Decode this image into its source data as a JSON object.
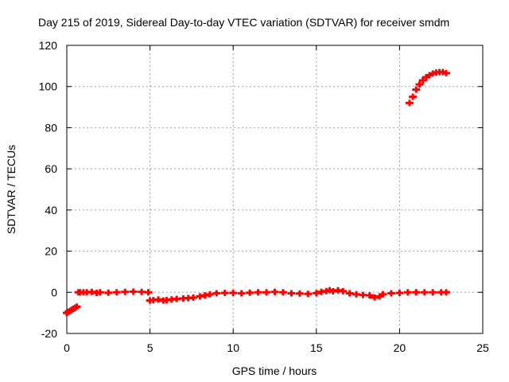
{
  "chart_data": {
    "type": "scatter",
    "title": "Day 215 of 2019, Sidereal Day-to-day VTEC variation (SDTVAR) for receiver smdm",
    "xlabel": "GPS time / hours",
    "ylabel": "SDTVAR / TECUs",
    "xlim": [
      0,
      25
    ],
    "ylim": [
      -20,
      120
    ],
    "xticks": [
      0,
      5,
      10,
      15,
      20,
      25
    ],
    "yticks": [
      -20,
      0,
      20,
      40,
      60,
      80,
      100,
      120
    ],
    "grid": true,
    "marker_color": "#ff0000",
    "series": [
      {
        "name": "SDTVAR",
        "x": [
          0.0,
          0.1,
          0.2,
          0.3,
          0.4,
          0.5,
          0.6,
          0.7,
          0.8,
          1.0,
          1.2,
          1.5,
          1.8,
          2.0,
          2.5,
          3.0,
          3.5,
          4.0,
          4.5,
          4.9,
          5.0,
          5.2,
          5.5,
          5.8,
          6.0,
          6.3,
          6.6,
          7.0,
          7.3,
          7.6,
          8.0,
          8.3,
          8.6,
          9.0,
          9.5,
          10.0,
          10.5,
          11.0,
          11.5,
          12.0,
          12.5,
          13.0,
          13.5,
          14.0,
          14.5,
          15.0,
          15.3,
          15.6,
          15.8,
          16.0,
          16.3,
          16.6,
          17.0,
          17.4,
          17.8,
          18.2,
          18.5,
          18.8,
          19.0,
          19.5,
          20.0,
          20.5,
          21.0,
          21.5,
          22.0,
          22.5,
          22.8,
          20.6,
          20.8,
          21.0,
          21.2,
          21.4,
          21.6,
          21.8,
          22.0,
          22.2,
          22.4,
          22.6,
          22.8
        ],
        "y": [
          -10.0,
          -9.5,
          -9.0,
          -8.5,
          -8.0,
          -7.5,
          -7.0,
          0.0,
          0.0,
          0.0,
          0.0,
          0.2,
          -0.3,
          0.0,
          -0.2,
          0.0,
          0.2,
          0.3,
          0.2,
          0.0,
          -4.0,
          -3.8,
          -3.5,
          -4.0,
          -3.8,
          -3.5,
          -3.2,
          -3.0,
          -2.8,
          -2.6,
          -2.0,
          -1.5,
          -1.0,
          -0.5,
          -0.3,
          -0.3,
          -0.5,
          -0.2,
          0.0,
          0.0,
          0.2,
          0.0,
          -0.5,
          -0.6,
          -0.8,
          -0.4,
          0.2,
          0.6,
          1.0,
          0.5,
          1.0,
          0.5,
          -0.5,
          -1.0,
          -1.3,
          -1.5,
          -2.5,
          -2.0,
          -1.0,
          -0.5,
          -0.3,
          0.0,
          0.0,
          0.0,
          0.0,
          0.0,
          0.0,
          92.0,
          95.0,
          98.5,
          101.0,
          103.0,
          104.5,
          105.5,
          106.3,
          106.8,
          107.0,
          107.0,
          106.5
        ]
      }
    ]
  }
}
